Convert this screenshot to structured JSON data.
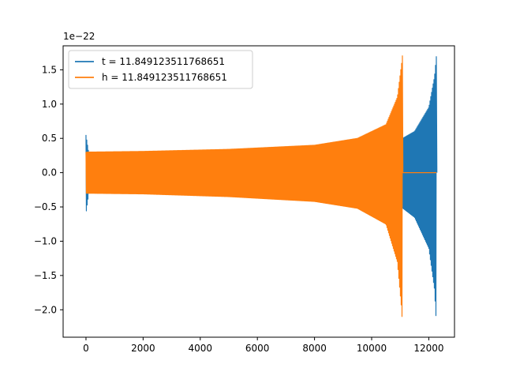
{
  "chart_data": {
    "type": "line",
    "title": "",
    "xlabel": "",
    "ylabel": "",
    "y_scale_label": "1e−22",
    "xlim": [
      -800,
      12900
    ],
    "ylim": [
      -2.4,
      1.85
    ],
    "x_ticks": [
      0,
      2000,
      4000,
      6000,
      8000,
      10000,
      12000
    ],
    "x_tick_labels": [
      "0",
      "2000",
      "4000",
      "6000",
      "8000",
      "10000",
      "12000"
    ],
    "y_ticks": [
      1.5,
      1.0,
      0.5,
      0.0,
      -0.5,
      -1.0,
      -1.5,
      -2.0
    ],
    "y_tick_labels": [
      "1.5",
      "1.0",
      "0.5",
      "0.0",
      "−0.5",
      "−1.0",
      "−1.5",
      "−2.0"
    ],
    "grid": false,
    "legend": {
      "position": "top-left"
    },
    "series": [
      {
        "name": "t = 11.849123511768651",
        "color": "#1f77b4",
        "x_start": 0,
        "merger_x": 12270,
        "x_end": 12270,
        "envelope": [
          [
            0,
            0.55,
            -0.6
          ],
          [
            100,
            0.28,
            -0.29
          ],
          [
            2000,
            0.28,
            -0.29
          ],
          [
            6000,
            0.32,
            -0.33
          ],
          [
            9000,
            0.37,
            -0.38
          ],
          [
            10500,
            0.42,
            -0.43
          ],
          [
            11000,
            0.48,
            -0.49
          ],
          [
            11500,
            0.6,
            -0.65
          ],
          [
            12000,
            0.95,
            -1.1
          ],
          [
            12200,
            1.4,
            -1.7
          ],
          [
            12270,
            1.72,
            -2.24
          ]
        ]
      },
      {
        "name": "h = 11.849123511768651",
        "color": "#ff7f0e",
        "x_start": 0,
        "merger_x": 11080,
        "x_end": 12270,
        "envelope": [
          [
            0,
            0.3,
            -0.3
          ],
          [
            2000,
            0.31,
            -0.31
          ],
          [
            5000,
            0.34,
            -0.35
          ],
          [
            8000,
            0.4,
            -0.42
          ],
          [
            9500,
            0.5,
            -0.52
          ],
          [
            10500,
            0.7,
            -0.75
          ],
          [
            10900,
            1.1,
            -1.3
          ],
          [
            11050,
            1.6,
            -2.0
          ],
          [
            11080,
            1.72,
            -2.24
          ]
        ]
      }
    ]
  }
}
